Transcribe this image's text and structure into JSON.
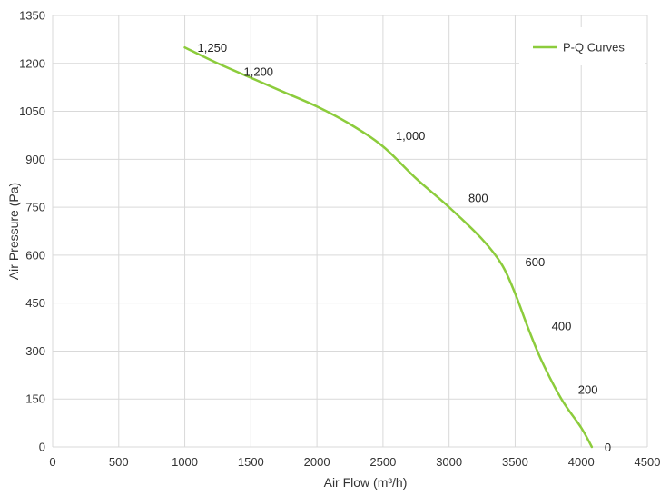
{
  "chart_data": {
    "type": "line",
    "xlabel": "Air Flow  (m³/h)",
    "ylabel": "Air Pressure  (Pa)",
    "xlim": [
      0,
      4500
    ],
    "ylim": [
      0,
      1350
    ],
    "xticks": [
      0,
      500,
      1000,
      1500,
      2000,
      2500,
      3000,
      3500,
      4000,
      4500
    ],
    "yticks": [
      0,
      150,
      300,
      450,
      600,
      750,
      900,
      1050,
      1200,
      1350
    ],
    "grid": true,
    "legend_position": "top-right",
    "series": [
      {
        "name": "P-Q Curves",
        "color": "#8ccc3c",
        "x": [
          1000,
          1250,
          1500,
          1750,
          2000,
          2250,
          2500,
          2750,
          3000,
          3250,
          3400,
          3500,
          3600,
          3700,
          3850,
          4000,
          4080
        ],
        "y": [
          1250,
          1200,
          1155,
          1110,
          1065,
          1010,
          940,
          840,
          750,
          650,
          570,
          480,
          370,
          270,
          150,
          60,
          0
        ]
      }
    ],
    "annotations": [
      {
        "text": "1,250",
        "x": 1000,
        "y": 1250
      },
      {
        "text": "1,200",
        "x": 1350,
        "y": 1175
      },
      {
        "text": "1,000",
        "x": 2500,
        "y": 975
      },
      {
        "text": "800",
        "x": 3050,
        "y": 780
      },
      {
        "text": "600",
        "x": 3480,
        "y": 580
      },
      {
        "text": "400",
        "x": 3680,
        "y": 380
      },
      {
        "text": "200",
        "x": 3880,
        "y": 180
      },
      {
        "text": "0",
        "x": 4080,
        "y": 0
      }
    ]
  }
}
